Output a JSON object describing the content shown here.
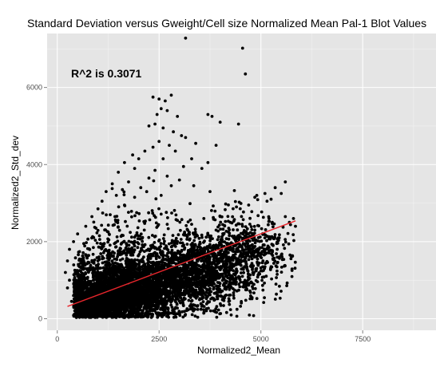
{
  "chart_data": {
    "type": "scatter",
    "title": "Standard Deviation versus Gweight/Cell size Normalized Mean Pal-1 Blot Values",
    "xlabel": "Normalized2_Mean",
    "ylabel": "Normalized2_Std_dev",
    "annotation": "R^2 is  0.3071",
    "xlim": [
      -250,
      9300
    ],
    "ylim": [
      -300,
      7400
    ],
    "x_ticks": [
      0,
      2500,
      5000,
      7500
    ],
    "y_ticks": [
      0,
      2000,
      4000,
      6000
    ],
    "x_tick_labels": [
      "0",
      "2500",
      "5000",
      "7500"
    ],
    "y_tick_labels": [
      "0",
      "2000",
      "4000",
      "6000"
    ],
    "grid": true,
    "background": "#e5e5e5",
    "grid_color": "#ffffff",
    "point_color": "#000000",
    "line_color": "#e8262c",
    "regression_line": {
      "x": [
        250,
        5850
      ],
      "y": [
        320,
        2540
      ]
    },
    "series": [
      {
        "points": [
          [
            3150,
            7280
          ],
          [
            4550,
            7020
          ],
          [
            4620,
            6350
          ],
          [
            2350,
            5750
          ],
          [
            2500,
            5700
          ],
          [
            2650,
            5650
          ],
          [
            2800,
            5800
          ],
          [
            2550,
            5450
          ],
          [
            2450,
            5300
          ],
          [
            2700,
            5400
          ],
          [
            2950,
            5250
          ],
          [
            2400,
            5050
          ],
          [
            2600,
            4950
          ],
          [
            2250,
            5000
          ],
          [
            2850,
            4850
          ],
          [
            3050,
            4750
          ],
          [
            3700,
            5300
          ],
          [
            3800,
            5250
          ],
          [
            4000,
            5100
          ],
          [
            4450,
            5050
          ],
          [
            3150,
            4700
          ],
          [
            2500,
            4600
          ],
          [
            2750,
            4500
          ],
          [
            2350,
            4450
          ],
          [
            2150,
            4350
          ],
          [
            2900,
            4350
          ],
          [
            3400,
            4550
          ],
          [
            3900,
            4500
          ],
          [
            1850,
            4250
          ],
          [
            2000,
            4150
          ],
          [
            2600,
            4150
          ],
          [
            3300,
            4150
          ],
          [
            3700,
            4050
          ],
          [
            1650,
            4050
          ],
          [
            1900,
            3900
          ],
          [
            2400,
            3850
          ],
          [
            3100,
            3950
          ],
          [
            3550,
            3900
          ],
          [
            1500,
            3800
          ],
          [
            2250,
            3650
          ],
          [
            2700,
            3700
          ],
          [
            3000,
            3600
          ],
          [
            1750,
            3550
          ],
          [
            1350,
            3500
          ],
          [
            1600,
            3350
          ],
          [
            2050,
            3400
          ],
          [
            3350,
            3450
          ],
          [
            2800,
            3450
          ],
          [
            1200,
            3300
          ],
          [
            1450,
            3200
          ],
          [
            1900,
            3150
          ],
          [
            2550,
            3200
          ],
          [
            1100,
            3050
          ],
          [
            3750,
            3300
          ],
          [
            5600,
            3550
          ],
          [
            5350,
            3400
          ],
          [
            5500,
            3250
          ],
          [
            5100,
            3250
          ],
          [
            5250,
            3100
          ],
          [
            4850,
            3150
          ],
          [
            4900,
            3200
          ],
          [
            5150,
            3050
          ],
          [
            4700,
            2950
          ],
          [
            4400,
            2900
          ],
          [
            5200,
            2600
          ],
          [
            5600,
            2650
          ],
          [
            5800,
            2600
          ],
          [
            5700,
            2500
          ],
          [
            5450,
            2100
          ],
          [
            5200,
            1850
          ],
          [
            5400,
            1800
          ],
          [
            5050,
            1500
          ],
          [
            5250,
            1350
          ],
          [
            5100,
            1350
          ],
          [
            5400,
            1150
          ],
          [
            4950,
            1700
          ],
          [
            5500,
            1650
          ],
          [
            4850,
            2300
          ],
          [
            4550,
            2400
          ],
          [
            4650,
            2200
          ],
          [
            4250,
            2500
          ],
          [
            4000,
            2650
          ],
          [
            3900,
            2300
          ],
          [
            3600,
            2600
          ],
          [
            3300,
            2450
          ],
          [
            2950,
            2550
          ],
          [
            2700,
            2450
          ],
          [
            1000,
            2850
          ],
          [
            850,
            2650
          ],
          [
            1300,
            2700
          ],
          [
            1650,
            2950
          ],
          [
            700,
            2400
          ],
          [
            950,
            2350
          ],
          [
            1250,
            2250
          ],
          [
            500,
            2200
          ],
          [
            400,
            2000
          ],
          [
            650,
            1950
          ],
          [
            300,
            1800
          ],
          [
            250,
            1500
          ],
          [
            200,
            1200
          ],
          [
            300,
            1000
          ],
          [
            250,
            800
          ],
          [
            400,
            600
          ],
          [
            350,
            450
          ],
          [
            500,
            300
          ],
          [
            600,
            150
          ],
          [
            700,
            80
          ],
          [
            900,
            50
          ],
          [
            1200,
            60
          ]
        ]
      }
    ],
    "dense_clouds": [
      {
        "cx": 1500,
        "cy": 650,
        "sx": 750,
        "sy": 430,
        "count": 2400
      },
      {
        "cx": 2600,
        "cy": 1000,
        "sx": 950,
        "sy": 480,
        "count": 1500
      },
      {
        "cx": 3700,
        "cy": 1400,
        "sx": 800,
        "sy": 520,
        "count": 800
      },
      {
        "cx": 4600,
        "cy": 1900,
        "sx": 600,
        "sy": 550,
        "count": 380
      },
      {
        "cx": 1700,
        "cy": 1800,
        "sx": 650,
        "sy": 800,
        "count": 320
      },
      {
        "cx": 900,
        "cy": 320,
        "sx": 380,
        "sy": 220,
        "count": 600
      }
    ]
  }
}
